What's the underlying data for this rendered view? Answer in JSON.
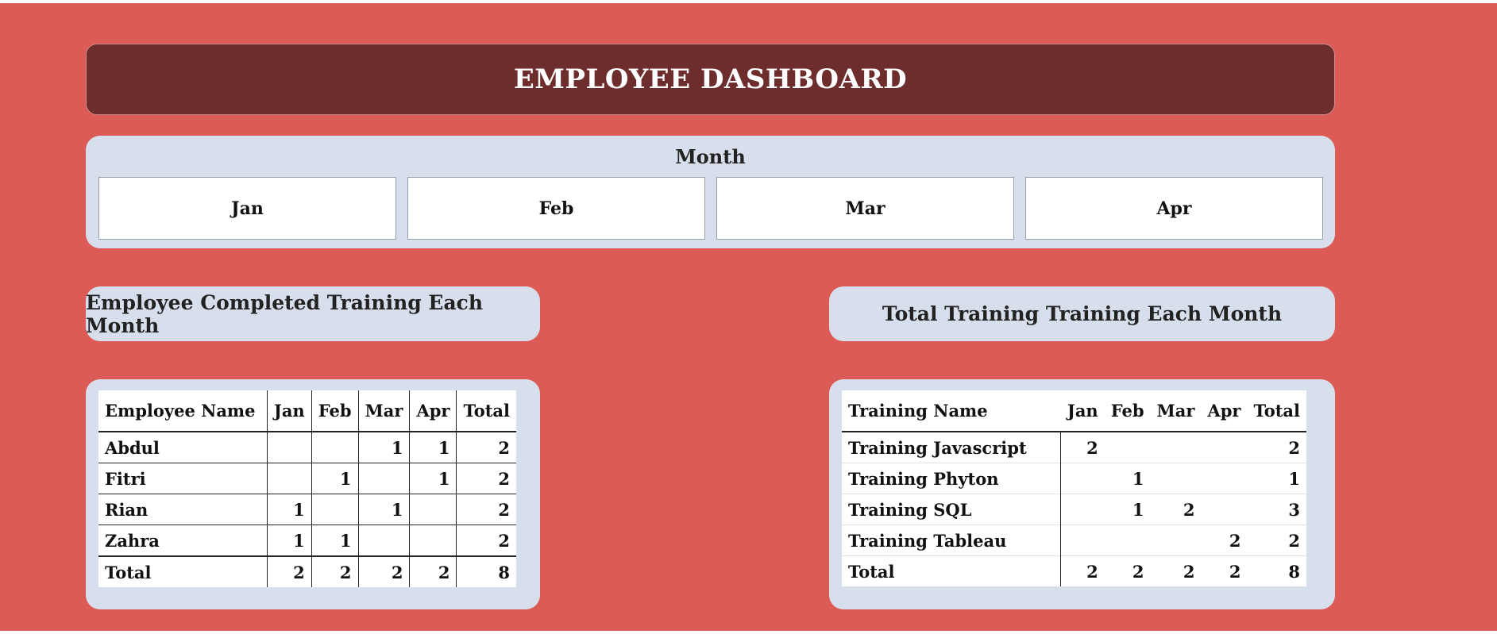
{
  "header": {
    "title": "EMPLOYEE DASHBOARD"
  },
  "slicer": {
    "title": "Month",
    "options": [
      "Jan",
      "Feb",
      "Mar",
      "Apr"
    ]
  },
  "panels": {
    "employee_title": "Employee Completed Training Each Month",
    "training_title": "Total Training Training Each Month"
  },
  "employee_table": {
    "headers": [
      "Employee Name",
      "Jan",
      "Feb",
      "Mar",
      "Apr",
      "Total"
    ],
    "rows": [
      [
        "Abdul",
        "",
        "",
        "1",
        "1",
        "2"
      ],
      [
        "Fitri",
        "",
        "1",
        "",
        "1",
        "2"
      ],
      [
        "Rian",
        "1",
        "",
        "1",
        "",
        "2"
      ],
      [
        "Zahra",
        "1",
        "1",
        "",
        "",
        "2"
      ],
      [
        "Total",
        "2",
        "2",
        "2",
        "2",
        "8"
      ]
    ]
  },
  "training_table": {
    "headers": [
      "Training Name",
      "Jan",
      "Feb",
      "Mar",
      "Apr",
      "Total"
    ],
    "rows": [
      [
        "Training Javascript",
        "2",
        "",
        "",
        "",
        "2"
      ],
      [
        "Training Phyton",
        "",
        "1",
        "",
        "",
        "1"
      ],
      [
        "Training SQL",
        "",
        "1",
        "2",
        "",
        "3"
      ],
      [
        "Training Tableau",
        "",
        "",
        "",
        "2",
        "2"
      ],
      [
        "Total",
        "2",
        "2",
        "2",
        "2",
        "8"
      ]
    ]
  }
}
